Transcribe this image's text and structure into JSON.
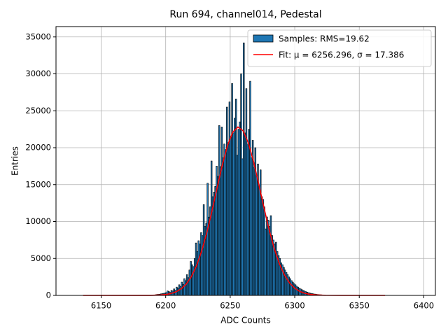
{
  "chart_data": {
    "type": "histogram",
    "title": "Run 694, channel014, Pedestal",
    "x_label": "ADC Counts",
    "y_label": "Entries",
    "hist_name": "Samples: RMS=19.62",
    "color": "#1f77b4",
    "edgecolor": "#000000",
    "bins": [
      6192,
      6193,
      6194,
      6195,
      6196,
      6197,
      6198,
      6199,
      6200,
      6201,
      6202,
      6203,
      6204,
      6205,
      6206,
      6207,
      6208,
      6209,
      6210,
      6211,
      6212,
      6213,
      6214,
      6215,
      6216,
      6217,
      6218,
      6219,
      6220,
      6221,
      6222,
      6223,
      6224,
      6225,
      6226,
      6227,
      6228,
      6229,
      6230,
      6231,
      6232,
      6233,
      6234,
      6235,
      6236,
      6237,
      6238,
      6239,
      6240,
      6241,
      6242,
      6243,
      6244,
      6245,
      6246,
      6247,
      6248,
      6249,
      6250,
      6251,
      6252,
      6253,
      6254,
      6255,
      6256,
      6257,
      6258,
      6259,
      6260,
      6261,
      6262,
      6263,
      6264,
      6265,
      6266,
      6267,
      6268,
      6269,
      6270,
      6271,
      6272,
      6273,
      6274,
      6275,
      6276,
      6277,
      6278,
      6279,
      6280,
      6281,
      6282,
      6283,
      6284,
      6285,
      6286,
      6287,
      6288,
      6289,
      6290,
      6291,
      6292,
      6293,
      6294,
      6295,
      6296,
      6297,
      6298,
      6299,
      6300,
      6301,
      6302,
      6303,
      6304,
      6305,
      6306,
      6307,
      6308,
      6309,
      6310,
      6311,
      6312,
      6313,
      6314,
      6315,
      6316,
      6317,
      6318,
      6319,
      6320,
      6321
    ],
    "counts": [
      100,
      130,
      150,
      170,
      210,
      240,
      280,
      330,
      380,
      600,
      520,
      420,
      675,
      600,
      880,
      700,
      1125,
      1000,
      1440,
      1200,
      1800,
      1500,
      2270,
      2000,
      2810,
      2400,
      3440,
      4600,
      4160,
      3900,
      5000,
      7100,
      5940,
      7400,
      6980,
      8500,
      8100,
      12300,
      9340,
      9800,
      15200,
      10600,
      12000,
      18200,
      13370,
      14000,
      14760,
      17500,
      16130,
      23000,
      17440,
      22800,
      18650,
      20500,
      19750,
      25500,
      20700,
      26200,
      21500,
      28700,
      22000,
      24000,
      26600,
      19000,
      22500,
      23500,
      30000,
      18500,
      34200,
      22000,
      28000,
      20500,
      22500,
      29000,
      18650,
      21000,
      17400,
      20000,
      16100,
      17800,
      14760,
      17000,
      13370,
      13000,
      12000,
      9000,
      10620,
      10200,
      9340,
      10800,
      8100,
      7500,
      6980,
      7200,
      5940,
      5400,
      5000,
      4400,
      4160,
      3800,
      3440,
      3100,
      2810,
      2500,
      2270,
      2000,
      1800,
      1600,
      1440,
      1250,
      1125,
      1000,
      880,
      780,
      675,
      600,
      520,
      450,
      380,
      330,
      280,
      240,
      207,
      180,
      150,
      130,
      108,
      90,
      80
    ],
    "fit": {
      "name": "Fit: μ = 6256.296, σ = 17.386",
      "color": "#ff0000",
      "x": [
        6136,
        6180,
        6188,
        6196,
        6200,
        6204,
        6208,
        6212,
        6216,
        6220,
        6224,
        6228,
        6232,
        6236,
        6240,
        6244,
        6248,
        6252,
        6256,
        6260,
        6264,
        6268,
        6272,
        6276,
        6280,
        6284,
        6288,
        6292,
        6296,
        6300,
        6304,
        6308,
        6312,
        6316,
        6324,
        6336,
        6370
      ],
      "values": [
        0,
        2,
        10,
        56,
        120,
        247,
        481,
        888,
        1553,
        2576,
        4058,
        6065,
        8580,
        11530,
        14690,
        17750,
        20340,
        22110,
        22800,
        22290,
        20670,
        18180,
        15160,
        12000,
        9000,
        6410,
        4325,
        2770,
        1682,
        968,
        529,
        274,
        135,
        63,
        12,
        1,
        0
      ]
    },
    "xlim": [
      6115,
      6409
    ],
    "ylim": [
      0,
      36400
    ],
    "xticks": [
      6150,
      6200,
      6250,
      6300,
      6350,
      6400
    ],
    "yticks": [
      0,
      5000,
      10000,
      15000,
      20000,
      25000,
      30000,
      35000
    ],
    "grid": true,
    "legend": "upper right"
  }
}
